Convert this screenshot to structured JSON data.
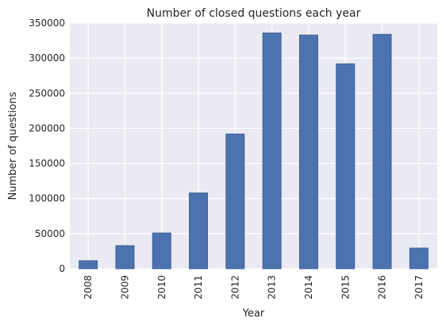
{
  "chart_data": {
    "type": "bar",
    "title": "Number of closed questions each year",
    "xlabel": "Year",
    "ylabel": "Number of questions",
    "categories": [
      "2008",
      "2009",
      "2010",
      "2011",
      "2012",
      "2013",
      "2014",
      "2015",
      "2016",
      "2017"
    ],
    "values": [
      11500,
      33000,
      51000,
      108000,
      192000,
      336000,
      333000,
      292000,
      334000,
      29500
    ],
    "ylim": [
      0,
      350000
    ],
    "yticks": [
      0,
      50000,
      100000,
      150000,
      200000,
      250000,
      300000,
      350000
    ],
    "grid": true,
    "colors": {
      "bar": "#4c72b0",
      "bar_edge": "#3c5a8e",
      "background": "#eaeaf2",
      "grid": "#ffffff"
    }
  }
}
